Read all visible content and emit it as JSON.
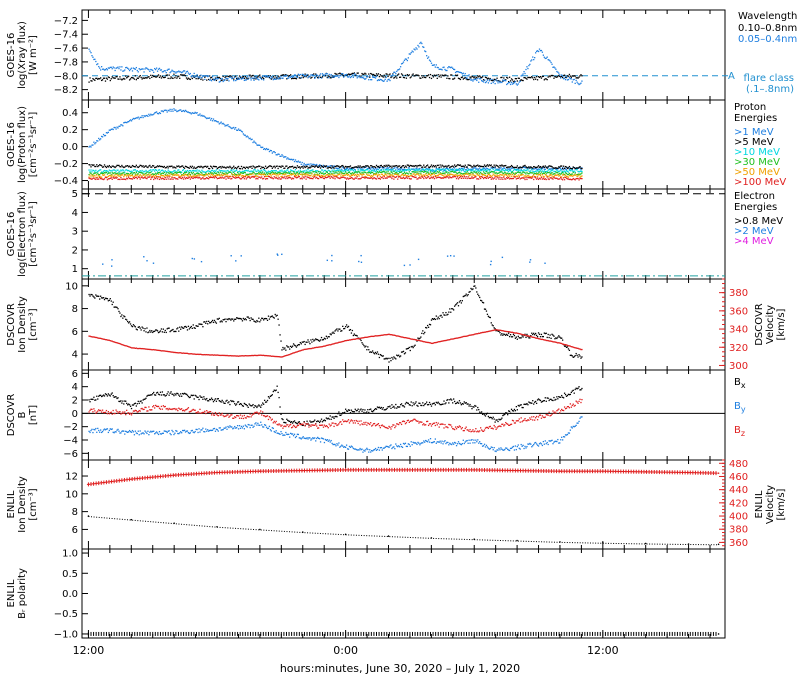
{
  "figure": {
    "xlabel": "hours:minutes, June 30, 2020 – July  1, 2020",
    "x_tick_labels": [
      "12:00",
      "0:00",
      "12:00"
    ],
    "x_tick_hours": [
      0,
      12,
      24
    ],
    "x_range_hours": [
      -0.3,
      29.7
    ]
  },
  "colors": {
    "black": "#000000",
    "blue": "#1f7fe0",
    "cyan": "#00d8e0",
    "green": "#20c020",
    "orange": "#f0a000",
    "red": "#e02020",
    "magenta": "#e020e0",
    "teal": "#20a0a0",
    "dash_blue": "#2090d0"
  },
  "chart_data": [
    {
      "id": "xray",
      "type": "scatter",
      "ylabel_lines": [
        "GOES-16",
        "log(Xray flux)",
        "[W m⁻²]"
      ],
      "ylim": [
        -8.35,
        -7.05
      ],
      "y_ticks": [
        -8.2,
        -8.0,
        -7.8,
        -7.6,
        -7.4,
        -7.2
      ],
      "y_tick_labels": [
        "−8.2",
        "−8.0",
        "−7.8",
        "−7.6",
        "−7.4",
        "−7.2"
      ],
      "legend_title": "Wavelength",
      "series": [
        {
          "name": "0.10–0.8nm",
          "color": "black",
          "x": [
            0,
            2,
            4,
            6,
            8,
            10,
            12,
            14,
            16,
            18,
            20,
            22,
            23
          ],
          "y": [
            -8.05,
            -8.02,
            -8.0,
            -8.03,
            -8.01,
            -8.0,
            -7.98,
            -7.99,
            -8.0,
            -8.02,
            -8.05,
            -8.0,
            -8.0
          ]
        },
        {
          "name": "0.05–0.4nm",
          "color": "blue",
          "x": [
            0,
            0.5,
            2,
            4,
            6,
            8,
            10,
            12,
            14,
            15.5,
            16,
            17,
            18,
            20,
            21,
            22,
            23
          ],
          "y": [
            -7.6,
            -7.88,
            -7.9,
            -7.92,
            -8.05,
            -8.02,
            -8.0,
            -7.98,
            -8.05,
            -7.5,
            -7.85,
            -7.9,
            -8.05,
            -8.1,
            -7.6,
            -8.0,
            -8.1
          ]
        }
      ],
      "reference_line": {
        "y": -8.0,
        "label": "A",
        "legend_lines": [
          "flare class",
          "(.1–.8nm)"
        ],
        "color": "dash_blue"
      }
    },
    {
      "id": "proton",
      "type": "scatter",
      "ylabel_lines": [
        "GOES-16",
        "log(Proton flux)",
        "[cm⁻²s⁻¹sr⁻¹]"
      ],
      "ylim": [
        -0.5,
        0.55
      ],
      "y_ticks": [
        -0.4,
        -0.2,
        0.0,
        0.2,
        0.4
      ],
      "y_tick_labels": [
        "−0.4",
        "−0.2",
        "0.0",
        "0.2",
        "0.4"
      ],
      "legend_title": [
        "Proton",
        "Energies"
      ],
      "series": [
        {
          "name": ">1 MeV",
          "color": "blue",
          "x": [
            0,
            1,
            2,
            3,
            4,
            5,
            6,
            7,
            8,
            10,
            12,
            14,
            16,
            18,
            20,
            22,
            23
          ],
          "y": [
            0.0,
            0.2,
            0.32,
            0.4,
            0.44,
            0.4,
            0.3,
            0.2,
            0.0,
            -0.2,
            -0.25,
            -0.25,
            -0.27,
            -0.25,
            -0.25,
            -0.25,
            -0.25
          ]
        },
        {
          "name": ">5 MeV",
          "color": "black",
          "x": [
            0,
            6,
            12,
            18,
            23
          ],
          "y": [
            -0.22,
            -0.24,
            -0.23,
            -0.22,
            -0.24
          ]
        },
        {
          "name": ">10 MeV",
          "color": "cyan",
          "x": [
            0,
            6,
            12,
            18,
            23
          ],
          "y": [
            -0.28,
            -0.28,
            -0.28,
            -0.27,
            -0.28
          ]
        },
        {
          "name": ">30 MeV",
          "color": "green",
          "x": [
            0,
            6,
            12,
            18,
            23
          ],
          "y": [
            -0.31,
            -0.31,
            -0.3,
            -0.3,
            -0.31
          ]
        },
        {
          "name": ">50 MeV",
          "color": "orange",
          "x": [
            0,
            6,
            12,
            18,
            23
          ],
          "y": [
            -0.34,
            -0.33,
            -0.33,
            -0.33,
            -0.34
          ]
        },
        {
          "name": ">100 MeV",
          "color": "red",
          "x": [
            0,
            6,
            12,
            18,
            23
          ],
          "y": [
            -0.37,
            -0.36,
            -0.36,
            -0.36,
            -0.37
          ]
        }
      ]
    },
    {
      "id": "electron",
      "type": "scatter",
      "ylabel_lines": [
        "GOES-16",
        "log(Electron flux)",
        "[cm⁻²s⁻¹sr⁻¹]"
      ],
      "ylim": [
        0.45,
        5.25
      ],
      "y_ticks": [
        1,
        2,
        3,
        4,
        5
      ],
      "y_tick_labels": [
        "1",
        "2",
        "3",
        "4",
        "5"
      ],
      "legend_title": [
        "Electron",
        "Energies"
      ],
      "series": [
        {
          "name": ">0.8 MeV",
          "color": "black",
          "x": [],
          "y": []
        },
        {
          "name": ">2 MeV",
          "color": "blue",
          "x": [
            1,
            3,
            5,
            7,
            9,
            11,
            13,
            15,
            17,
            19,
            21
          ],
          "y": [
            1.4,
            1.5,
            1.6,
            1.5,
            1.7,
            1.5,
            1.6,
            1.4,
            1.5,
            1.5,
            1.3
          ]
        },
        {
          "name": ">4 MeV",
          "color": "magenta",
          "x": [],
          "y": []
        }
      ],
      "reference_lines": [
        {
          "y": 5.0,
          "color": "black",
          "style": "dashed"
        },
        {
          "y": 0.62,
          "color": "teal",
          "style": "dashdot"
        }
      ]
    },
    {
      "id": "dscovr_density",
      "type": "scatter",
      "ylabel_lines": [
        "DSCOVR",
        "Ion Density",
        "[cm⁻³]"
      ],
      "ylim": [
        2.6,
        10.6
      ],
      "y_ticks": [
        4,
        6,
        8,
        10
      ],
      "y_tick_labels": [
        "4",
        "6",
        "8",
        "10"
      ],
      "ylabel_right_lines": [
        "DSCOVR",
        "Velocity",
        "[km/s]"
      ],
      "y2lim": [
        295,
        395
      ],
      "y2_ticks": [
        300,
        320,
        340,
        360,
        380
      ],
      "y2_tick_labels": [
        "300",
        "320",
        "340",
        "360",
        "380"
      ],
      "series": [
        {
          "name": "density",
          "color": "black",
          "x": [
            0,
            1,
            1.5,
            2,
            3,
            4,
            5,
            6,
            7,
            8,
            8.8,
            9,
            10,
            11,
            12,
            13,
            14,
            15,
            16,
            17,
            18,
            19,
            20,
            21,
            22,
            22.5,
            23
          ],
          "y": [
            9.2,
            8.8,
            7.5,
            6.5,
            6.0,
            6.2,
            6.5,
            7.0,
            7.2,
            7.0,
            7.5,
            4.5,
            5.0,
            5.5,
            6.5,
            4.5,
            3.5,
            4.5,
            7.0,
            8.0,
            10.0,
            6.0,
            5.5,
            5.8,
            5.5,
            4.0,
            3.8
          ]
        },
        {
          "name": "velocity",
          "axis": "right",
          "color": "red",
          "x": [
            0,
            1,
            2,
            3,
            4,
            5,
            6,
            7,
            8,
            9,
            10,
            11,
            12,
            13,
            14,
            15,
            16,
            17,
            18,
            19,
            20,
            21,
            22,
            23
          ],
          "y": [
            333,
            328,
            320,
            318,
            315,
            313,
            312,
            311,
            312,
            310,
            318,
            322,
            328,
            332,
            335,
            330,
            325,
            330,
            335,
            340,
            336,
            330,
            325,
            318
          ]
        }
      ]
    },
    {
      "id": "dscovr_b",
      "type": "scatter",
      "ylabel_lines": [
        "DSCOVR",
        "B",
        "[nT]"
      ],
      "ylim": [
        -7,
        6.5
      ],
      "y_ticks": [
        -6,
        -4,
        -2,
        0,
        2,
        4,
        6
      ],
      "y_tick_labels": [
        "−6",
        "−4",
        "−2",
        "0",
        "2",
        "4",
        "6"
      ],
      "series": [
        {
          "name": "Bₓ",
          "color": "black",
          "x": [
            0,
            1,
            2,
            3,
            4,
            5,
            6,
            7,
            8,
            8.8,
            9,
            10,
            11,
            12,
            13,
            14,
            15,
            16,
            17,
            18,
            19,
            20,
            21,
            22,
            23
          ],
          "y": [
            2.0,
            3.0,
            1.0,
            3.0,
            3.0,
            2.5,
            2.0,
            1.5,
            1.0,
            4.0,
            -1.0,
            -1.5,
            -1.0,
            0.5,
            0.5,
            1.0,
            1.5,
            1.5,
            2.0,
            1.0,
            -1.0,
            1.0,
            2.0,
            2.5,
            4.0
          ]
        },
        {
          "name": "Bᵧ",
          "color": "blue",
          "x": [
            0,
            1,
            2,
            3,
            4,
            5,
            6,
            7,
            8,
            9,
            10,
            11,
            12,
            13,
            14,
            15,
            16,
            17,
            18,
            19,
            20,
            21,
            22,
            23
          ],
          "y": [
            -2.5,
            -2.5,
            -2.8,
            -2.8,
            -2.8,
            -2.5,
            -2.3,
            -2.0,
            -1.5,
            -3.0,
            -3.5,
            -4.0,
            -5.0,
            -5.5,
            -5.0,
            -4.5,
            -4.0,
            -4.5,
            -4.0,
            -5.5,
            -5.0,
            -4.5,
            -4.0,
            -0.5
          ]
        },
        {
          "name": "Bᵩ",
          "color": "red",
          "x": [
            0,
            1,
            2,
            3,
            4,
            5,
            6,
            7,
            8,
            9,
            10,
            11,
            12,
            13,
            14,
            15,
            16,
            17,
            18,
            19,
            20,
            21,
            22,
            23
          ],
          "y": [
            0.5,
            0.3,
            0.2,
            1.0,
            0.8,
            0.5,
            0.0,
            -0.5,
            0.2,
            -2.0,
            -1.5,
            -2.0,
            -1.0,
            -1.5,
            -2.0,
            -1.0,
            -1.5,
            -2.0,
            -2.5,
            -2.0,
            -1.0,
            -0.5,
            0.5,
            2.0
          ]
        }
      ],
      "legend_labels": [
        "B",
        "B",
        "B"
      ],
      "legend_subscripts": [
        "x",
        "y",
        "z"
      ]
    },
    {
      "id": "enlil_density",
      "type": "line",
      "ylabel_lines": [
        "ENLIL",
        "Ion Density",
        "[cm⁻³]"
      ],
      "ylim": [
        3.8,
        13.8
      ],
      "y_ticks": [
        6,
        8,
        10,
        12
      ],
      "y_tick_labels": [
        "6",
        "8",
        "10",
        "12"
      ],
      "ylabel_right_lines": [
        "ENLIL",
        "Velocity",
        "[km/s]"
      ],
      "y2lim": [
        350,
        485
      ],
      "y2_ticks": [
        360,
        380,
        400,
        420,
        440,
        460,
        480
      ],
      "y2_tick_labels": [
        "360",
        "380",
        "400",
        "420",
        "440",
        "460",
        "480"
      ],
      "series": [
        {
          "name": "density",
          "color": "black",
          "x": [
            0,
            2,
            4,
            6,
            8,
            10,
            12,
            14,
            16,
            18,
            20,
            22,
            24,
            26,
            28,
            29.4
          ],
          "y": [
            7.5,
            7.1,
            6.7,
            6.3,
            6.0,
            5.7,
            5.45,
            5.25,
            5.05,
            4.9,
            4.75,
            4.6,
            4.5,
            4.42,
            4.36,
            4.33
          ]
        },
        {
          "name": "velocity",
          "axis": "right",
          "color": "red",
          "x": [
            0,
            2,
            4,
            6,
            8,
            10,
            12,
            14,
            16,
            18,
            20,
            22,
            24,
            26,
            28,
            29.4
          ],
          "y": [
            448,
            456,
            462,
            466,
            468,
            469,
            470,
            470,
            470,
            470,
            469,
            468,
            468,
            467,
            466,
            465
          ]
        }
      ]
    },
    {
      "id": "enlil_polarity",
      "type": "line",
      "ylabel_lines": [
        "ENLIL",
        "Bᵣ polarity"
      ],
      "ylim": [
        -1.1,
        1.1
      ],
      "y_ticks": [
        -1.0,
        -0.5,
        0.0,
        0.5,
        1.0
      ],
      "y_tick_labels": [
        "−1.0",
        "−0.5",
        "0.0",
        "0.5",
        "1.0"
      ],
      "series": [
        {
          "name": "polarity",
          "color": "black",
          "x": [
            0,
            29.4
          ],
          "y": [
            -1.0,
            -1.0
          ]
        }
      ]
    }
  ]
}
